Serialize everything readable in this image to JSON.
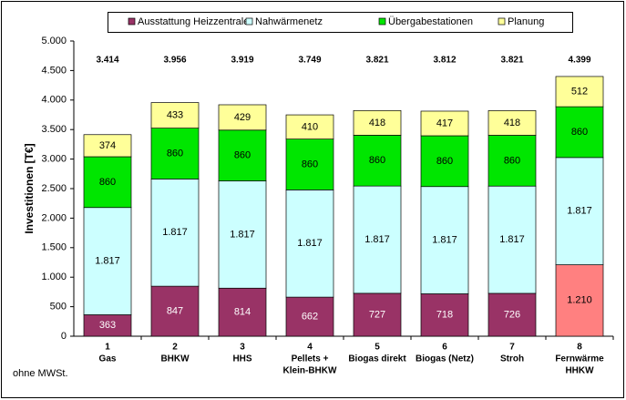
{
  "chart_data": {
    "type": "stacked-bar",
    "ylabel": "Investitionen [T€]",
    "note": "ohne MWSt.",
    "categories": [
      [
        "1",
        "Gas"
      ],
      [
        "2",
        "BHKW"
      ],
      [
        "3",
        "HHS"
      ],
      [
        "4",
        "Pellets +",
        "Klein-BHKW"
      ],
      [
        "5",
        "Biogas direkt"
      ],
      [
        "6",
        "Biogas (Netz)"
      ],
      [
        "7",
        "Stroh"
      ],
      [
        "8",
        "Fernwärme",
        "HHKW"
      ]
    ],
    "series": [
      {
        "name": "Ausstattung Heizzentrale",
        "color": "#993366",
        "colors": [
          "#993366",
          "#993366",
          "#993366",
          "#993366",
          "#993366",
          "#993366",
          "#993366",
          "#ff8080"
        ],
        "values": [
          363,
          847,
          814,
          662,
          727,
          718,
          726,
          1210
        ],
        "value_labels": [
          "363",
          "847",
          "814",
          "662",
          "727",
          "718",
          "726",
          "1.210"
        ]
      },
      {
        "name": "Nahwärmenetz",
        "color": "#ccffff",
        "values": [
          1817,
          1817,
          1817,
          1817,
          1817,
          1817,
          1817,
          1817
        ],
        "value_labels": [
          "1.817",
          "1.817",
          "1.817",
          "1.817",
          "1.817",
          "1.817",
          "1.817",
          "1.817"
        ]
      },
      {
        "name": "Übergabestationen",
        "color": "#00e600",
        "values": [
          860,
          860,
          860,
          860,
          860,
          860,
          860,
          860
        ]
      },
      {
        "name": "Planung",
        "color": "#ffff99",
        "values": [
          374,
          433,
          429,
          410,
          418,
          417,
          418,
          512
        ]
      }
    ],
    "totals": {
      "values": [
        3414,
        3956,
        3919,
        3749,
        3821,
        3812,
        3821,
        4399
      ],
      "value_labels": [
        "3.414",
        "3.956",
        "3.919",
        "3.749",
        "3.821",
        "3.812",
        "3.821",
        "4.399"
      ]
    },
    "ylim": [
      0,
      5000
    ],
    "yticks": [
      0,
      500,
      {
        "value": 1000,
        "label": "1.000"
      },
      {
        "value": 1500,
        "label": "1.500"
      },
      {
        "value": 2000,
        "label": "2.000"
      },
      {
        "value": 2500,
        "label": "2.500"
      },
      {
        "value": 3000,
        "label": "3.000"
      },
      {
        "value": 3500,
        "label": "3.500"
      },
      {
        "value": 4000,
        "label": "4.000"
      },
      {
        "value": 4500,
        "label": "4.500"
      },
      {
        "value": 5000,
        "label": "5.000"
      }
    ],
    "legend": "top"
  }
}
